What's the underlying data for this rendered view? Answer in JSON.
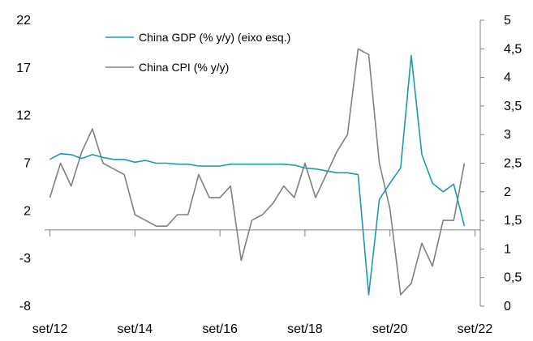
{
  "chart_data": {
    "type": "line",
    "title": "",
    "left_axis": {
      "label": "",
      "ylim": [
        -8,
        22
      ],
      "ticks": [
        "22",
        "17",
        "12",
        "7",
        "2",
        "-3",
        "-8"
      ],
      "tick_values": [
        22,
        17,
        12,
        7,
        2,
        -3,
        -8
      ]
    },
    "right_axis": {
      "label": "",
      "ylim": [
        0,
        5
      ],
      "ticks": [
        "5",
        "4,5",
        "4",
        "3,5",
        "3",
        "2,5",
        "2",
        "1,5",
        "1",
        "0,5",
        "0"
      ],
      "tick_values": [
        5,
        4.5,
        4,
        3.5,
        3,
        2.5,
        2,
        1.5,
        1,
        0.5,
        0
      ]
    },
    "x_axis": {
      "label": "",
      "ticks": [
        "set/12",
        "set/14",
        "set/16",
        "set/18",
        "set/20",
        "set/22"
      ],
      "tick_positions": [
        0,
        8,
        16,
        24,
        32,
        40
      ],
      "xlim": [
        -0.5,
        40.5
      ],
      "zero_line_value_left": 0
    },
    "legend": {
      "placement": "top-center",
      "entries": [
        {
          "label": "China GDP (% y/y) (eixo esq.)",
          "color": "#1b9aaa"
        },
        {
          "label": "China CPI (% y/y)",
          "color": "#808080"
        }
      ]
    },
    "series": [
      {
        "name": "China GDP (% y/y) (eixo esq.)",
        "axis": "left",
        "color": "#1b9aaa",
        "x": [
          0,
          1,
          2,
          3,
          4,
          5,
          6,
          7,
          8,
          9,
          10,
          11,
          12,
          13,
          14,
          15,
          16,
          17,
          18,
          19,
          20,
          21,
          22,
          23,
          24,
          25,
          26,
          27,
          28,
          29,
          30,
          31,
          32,
          33,
          34,
          35,
          36,
          37,
          38,
          39,
          40
        ],
        "y": [
          7.4,
          8.0,
          7.9,
          7.5,
          7.9,
          7.6,
          7.4,
          7.4,
          7.1,
          7.3,
          7.0,
          7.0,
          6.9,
          6.9,
          6.7,
          6.7,
          6.7,
          6.9,
          6.9,
          6.9,
          6.9,
          6.9,
          6.9,
          6.8,
          6.5,
          6.4,
          6.2,
          6.0,
          6.0,
          5.8,
          -6.8,
          3.2,
          4.9,
          6.5,
          18.3,
          7.9,
          4.9,
          4.0,
          4.8,
          0.4,
          null
        ]
      },
      {
        "name": "China CPI (% y/y)",
        "axis": "right",
        "color": "#808080",
        "x": [
          0,
          1,
          2,
          3,
          4,
          5,
          6,
          7,
          8,
          9,
          10,
          11,
          12,
          13,
          14,
          15,
          16,
          17,
          18,
          19,
          20,
          21,
          22,
          23,
          24,
          25,
          26,
          27,
          28,
          29,
          30,
          31,
          32,
          33,
          34,
          35,
          36,
          37,
          38,
          39,
          40
        ],
        "y": [
          1.9,
          2.5,
          2.1,
          2.7,
          3.1,
          2.5,
          2.4,
          2.3,
          1.6,
          1.5,
          1.4,
          1.4,
          1.6,
          1.6,
          2.3,
          1.9,
          1.9,
          2.1,
          0.8,
          1.5,
          1.6,
          1.8,
          2.1,
          1.9,
          2.5,
          1.9,
          2.3,
          2.7,
          3.0,
          4.5,
          4.4,
          2.5,
          1.7,
          0.2,
          0.4,
          1.1,
          0.7,
          1.5,
          1.5,
          2.5,
          null
        ]
      }
    ]
  }
}
